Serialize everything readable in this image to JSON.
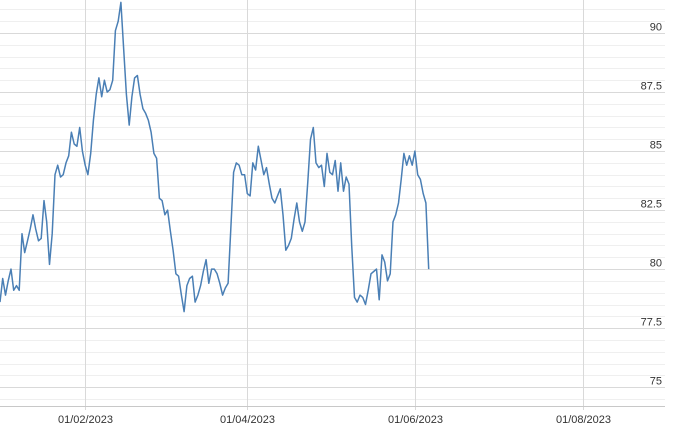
{
  "chart_data": {
    "type": "line",
    "title": "",
    "xlabel": "",
    "ylabel": "",
    "xlim": [
      "2023-01-01",
      "2023-08-31"
    ],
    "ylim": [
      74.2,
      91.4
    ],
    "grid": true,
    "y_ticks": [
      75,
      77.5,
      80,
      82.5,
      85,
      87.5,
      90
    ],
    "y_tick_labels": [
      "75",
      "77.5",
      "80",
      "82.5",
      "85",
      "87.5",
      "90"
    ],
    "x_ticks": [
      "2023-02-01",
      "2023-04-01",
      "2023-06-01",
      "2023-08-01"
    ],
    "x_tick_labels": [
      "01/02/2023",
      "01/04/2023",
      "01/06/2023",
      "01/08/2023"
    ],
    "colors": {
      "line": "#4a7fb5",
      "major_grid": "#d9d9d9",
      "minor_grid": "#efefef"
    },
    "series": [
      {
        "points": [
          [
            "2023-01-01",
            78.6
          ],
          [
            "2023-01-02",
            79.6
          ],
          [
            "2023-01-03",
            78.9
          ],
          [
            "2023-01-04",
            79.5
          ],
          [
            "2023-01-05",
            80.0
          ],
          [
            "2023-01-06",
            79.1
          ],
          [
            "2023-01-07",
            79.3
          ],
          [
            "2023-01-08",
            79.1
          ],
          [
            "2023-01-09",
            81.5
          ],
          [
            "2023-01-10",
            80.7
          ],
          [
            "2023-01-11",
            81.2
          ],
          [
            "2023-01-12",
            81.7
          ],
          [
            "2023-01-13",
            82.3
          ],
          [
            "2023-01-14",
            81.7
          ],
          [
            "2023-01-15",
            81.2
          ],
          [
            "2023-01-16",
            81.3
          ],
          [
            "2023-01-17",
            82.9
          ],
          [
            "2023-01-18",
            82.0
          ],
          [
            "2023-01-19",
            80.2
          ],
          [
            "2023-01-20",
            81.5
          ],
          [
            "2023-01-21",
            84.0
          ],
          [
            "2023-01-22",
            84.4
          ],
          [
            "2023-01-23",
            83.9
          ],
          [
            "2023-01-24",
            84.0
          ],
          [
            "2023-01-25",
            84.5
          ],
          [
            "2023-01-26",
            84.8
          ],
          [
            "2023-01-27",
            85.8
          ],
          [
            "2023-01-28",
            85.3
          ],
          [
            "2023-01-29",
            85.2
          ],
          [
            "2023-01-30",
            86.0
          ],
          [
            "2023-01-31",
            85.0
          ],
          [
            "2023-02-01",
            84.4
          ],
          [
            "2023-02-02",
            84.0
          ],
          [
            "2023-02-03",
            84.9
          ],
          [
            "2023-02-04",
            86.3
          ],
          [
            "2023-02-05",
            87.4
          ],
          [
            "2023-02-06",
            88.1
          ],
          [
            "2023-02-07",
            87.3
          ],
          [
            "2023-02-08",
            88.0
          ],
          [
            "2023-02-09",
            87.5
          ],
          [
            "2023-02-10",
            87.6
          ],
          [
            "2023-02-11",
            88.0
          ],
          [
            "2023-02-12",
            90.1
          ],
          [
            "2023-02-13",
            90.5
          ],
          [
            "2023-02-14",
            91.3
          ],
          [
            "2023-02-15",
            89.3
          ],
          [
            "2023-02-16",
            87.4
          ],
          [
            "2023-02-17",
            86.1
          ],
          [
            "2023-02-18",
            87.3
          ],
          [
            "2023-02-19",
            88.1
          ],
          [
            "2023-02-20",
            88.2
          ],
          [
            "2023-02-21",
            87.4
          ],
          [
            "2023-02-22",
            86.8
          ],
          [
            "2023-02-23",
            86.6
          ],
          [
            "2023-02-24",
            86.3
          ],
          [
            "2023-02-25",
            85.8
          ],
          [
            "2023-02-26",
            84.9
          ],
          [
            "2023-02-27",
            84.7
          ],
          [
            "2023-02-28",
            83.0
          ],
          [
            "2023-03-01",
            82.9
          ],
          [
            "2023-03-02",
            82.3
          ],
          [
            "2023-03-03",
            82.5
          ],
          [
            "2023-03-04",
            81.6
          ],
          [
            "2023-03-05",
            80.8
          ],
          [
            "2023-03-06",
            79.8
          ],
          [
            "2023-03-07",
            79.7
          ],
          [
            "2023-03-08",
            78.9
          ],
          [
            "2023-03-09",
            78.2
          ],
          [
            "2023-03-10",
            79.3
          ],
          [
            "2023-03-11",
            79.6
          ],
          [
            "2023-03-12",
            79.7
          ],
          [
            "2023-03-13",
            78.6
          ],
          [
            "2023-03-14",
            78.9
          ],
          [
            "2023-03-15",
            79.3
          ],
          [
            "2023-03-16",
            79.9
          ],
          [
            "2023-03-17",
            80.4
          ],
          [
            "2023-03-18",
            79.4
          ],
          [
            "2023-03-19",
            80.0
          ],
          [
            "2023-03-20",
            80.0
          ],
          [
            "2023-03-21",
            79.8
          ],
          [
            "2023-03-22",
            79.4
          ],
          [
            "2023-03-23",
            78.9
          ],
          [
            "2023-03-24",
            79.2
          ],
          [
            "2023-03-25",
            79.4
          ],
          [
            "2023-03-26",
            81.7
          ],
          [
            "2023-03-27",
            84.1
          ],
          [
            "2023-03-28",
            84.5
          ],
          [
            "2023-03-29",
            84.4
          ],
          [
            "2023-03-30",
            84.0
          ],
          [
            "2023-03-31",
            84.0
          ],
          [
            "2023-04-01",
            83.2
          ],
          [
            "2023-04-02",
            83.1
          ],
          [
            "2023-04-03",
            84.5
          ],
          [
            "2023-04-04",
            84.2
          ],
          [
            "2023-04-05",
            85.2
          ],
          [
            "2023-04-06",
            84.6
          ],
          [
            "2023-04-07",
            84.0
          ],
          [
            "2023-04-08",
            84.3
          ],
          [
            "2023-04-09",
            83.6
          ],
          [
            "2023-04-10",
            83.0
          ],
          [
            "2023-04-11",
            82.8
          ],
          [
            "2023-04-12",
            83.1
          ],
          [
            "2023-04-13",
            83.4
          ],
          [
            "2023-04-14",
            82.3
          ],
          [
            "2023-04-15",
            80.8
          ],
          [
            "2023-04-16",
            81.0
          ],
          [
            "2023-04-17",
            81.3
          ],
          [
            "2023-04-18",
            82.1
          ],
          [
            "2023-04-19",
            82.8
          ],
          [
            "2023-04-20",
            82.0
          ],
          [
            "2023-04-21",
            81.6
          ],
          [
            "2023-04-22",
            82.0
          ],
          [
            "2023-04-23",
            83.7
          ],
          [
            "2023-04-24",
            85.5
          ],
          [
            "2023-04-25",
            86.0
          ],
          [
            "2023-04-26",
            84.5
          ],
          [
            "2023-04-27",
            84.3
          ],
          [
            "2023-04-28",
            84.4
          ],
          [
            "2023-04-29",
            83.5
          ],
          [
            "2023-04-30",
            84.9
          ],
          [
            "2023-05-01",
            84.1
          ],
          [
            "2023-05-02",
            84.0
          ],
          [
            "2023-05-03",
            84.6
          ],
          [
            "2023-05-04",
            83.3
          ],
          [
            "2023-05-05",
            84.5
          ],
          [
            "2023-05-06",
            83.3
          ],
          [
            "2023-05-07",
            83.9
          ],
          [
            "2023-05-08",
            83.6
          ],
          [
            "2023-05-09",
            81.0
          ],
          [
            "2023-05-10",
            78.8
          ],
          [
            "2023-05-11",
            78.6
          ],
          [
            "2023-05-12",
            78.9
          ],
          [
            "2023-05-13",
            78.8
          ],
          [
            "2023-05-14",
            78.5
          ],
          [
            "2023-05-15",
            79.1
          ],
          [
            "2023-05-16",
            79.8
          ],
          [
            "2023-05-17",
            79.9
          ],
          [
            "2023-05-18",
            80.0
          ],
          [
            "2023-05-19",
            78.7
          ],
          [
            "2023-05-20",
            80.6
          ],
          [
            "2023-05-21",
            80.3
          ],
          [
            "2023-05-22",
            79.5
          ],
          [
            "2023-05-23",
            79.8
          ],
          [
            "2023-05-24",
            82.0
          ],
          [
            "2023-05-25",
            82.3
          ],
          [
            "2023-05-26",
            82.8
          ],
          [
            "2023-05-27",
            83.8
          ],
          [
            "2023-05-28",
            84.9
          ],
          [
            "2023-05-29",
            84.4
          ],
          [
            "2023-05-30",
            84.8
          ],
          [
            "2023-05-31",
            84.4
          ],
          [
            "2023-06-01",
            85.0
          ],
          [
            "2023-06-02",
            84.0
          ],
          [
            "2023-06-03",
            83.8
          ],
          [
            "2023-06-04",
            83.2
          ],
          [
            "2023-06-05",
            82.8
          ],
          [
            "2023-06-06",
            80.0
          ]
        ]
      }
    ]
  }
}
